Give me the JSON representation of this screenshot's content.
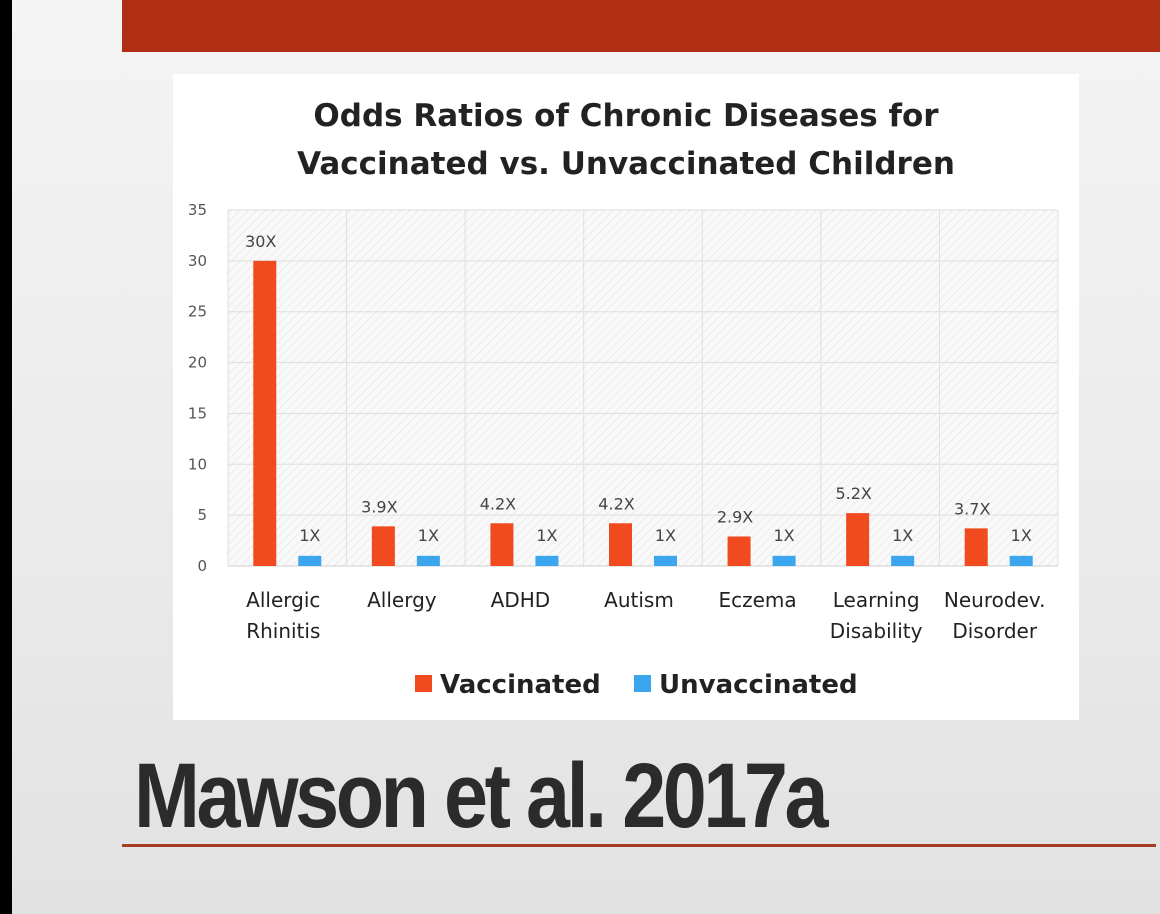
{
  "slide": {
    "caption": "Mawson et al. 2017a",
    "accent_color": "#b02e14"
  },
  "chart_data": {
    "type": "bar",
    "title_lines": [
      "Odds Ratios of Chronic Diseases for",
      "Vaccinated vs. Unvaccinated Children"
    ],
    "categories": [
      [
        "Allergic",
        "Rhinitis"
      ],
      [
        "Allergy"
      ],
      [
        "ADHD"
      ],
      [
        "Autism"
      ],
      [
        "Eczema"
      ],
      [
        "Learning",
        "Disability"
      ],
      [
        "Neurodev.",
        "Disorder"
      ]
    ],
    "series": [
      {
        "name": "Vaccinated",
        "color": "#f04a1e",
        "values": [
          30,
          3.9,
          4.2,
          4.2,
          2.9,
          5.2,
          3.7
        ],
        "labels": [
          "30X",
          "3.9X",
          "4.2X",
          "4.2X",
          "2.9X",
          "5.2X",
          "3.7X"
        ]
      },
      {
        "name": "Unvaccinated",
        "color": "#3ba5ee",
        "values": [
          1,
          1,
          1,
          1,
          1,
          1,
          1
        ],
        "labels": [
          "1X",
          "1X",
          "1X",
          "1X",
          "1X",
          "1X",
          "1X"
        ]
      }
    ],
    "ylim": [
      0,
      35
    ],
    "yticks": [
      0,
      5,
      10,
      15,
      20,
      25,
      30,
      35
    ],
    "xlabel": "",
    "ylabel": "",
    "grid": true,
    "legend_position": "bottom"
  }
}
